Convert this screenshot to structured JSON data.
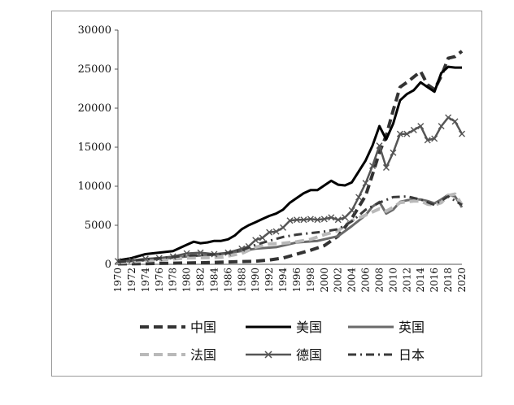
{
  "chart_data": {
    "type": "line",
    "title": "",
    "xlabel": "",
    "ylabel": "",
    "ylim": [
      0,
      30000
    ],
    "yticks": [
      0,
      5000,
      10000,
      15000,
      20000,
      25000,
      30000
    ],
    "xlim": [
      1970,
      2020
    ],
    "xticks": [
      1970,
      1972,
      1974,
      1976,
      1978,
      1980,
      1982,
      1984,
      1986,
      1988,
      1990,
      1992,
      1994,
      1996,
      1998,
      2000,
      2002,
      2004,
      2006,
      2008,
      2010,
      2012,
      2014,
      2016,
      2018,
      2020
    ],
    "legend_position": "bottom",
    "grid": false,
    "series": [
      {
        "name": "中国",
        "color": "#333333",
        "style": "dash",
        "x": [
          1970,
          1974,
          1978,
          1982,
          1986,
          1990,
          1992,
          1994,
          1996,
          1998,
          2000,
          2002,
          2004,
          2006,
          2007,
          2008,
          2009,
          2010,
          2011,
          2012,
          2013,
          2014,
          2015,
          2016,
          2017,
          2018,
          2019,
          2020
        ],
        "y": [
          50,
          80,
          150,
          200,
          300,
          400,
          550,
          800,
          1300,
          1800,
          2400,
          3600,
          5900,
          8800,
          11500,
          14300,
          16500,
          19700,
          22700,
          23300,
          24000,
          24700,
          23000,
          22400,
          24100,
          26400,
          26600,
          27300
        ]
      },
      {
        "name": "美国",
        "color": "#000000",
        "style": "solid",
        "x": [
          1970,
          1972,
          1974,
          1976,
          1978,
          1980,
          1981,
          1982,
          1983,
          1984,
          1985,
          1986,
          1987,
          1988,
          1989,
          1990,
          1991,
          1992,
          1993,
          1994,
          1995,
          1996,
          1997,
          1998,
          1999,
          2000,
          2001,
          2002,
          2003,
          2004,
          2005,
          2006,
          2007,
          2008,
          2009,
          2010,
          2011,
          2012,
          2013,
          2014,
          2015,
          2016,
          2017,
          2018,
          2019,
          2020
        ],
        "y": [
          500,
          800,
          1300,
          1500,
          1700,
          2500,
          2900,
          2700,
          2800,
          3000,
          3000,
          3200,
          3700,
          4500,
          5000,
          5400,
          5800,
          6200,
          6500,
          7000,
          7900,
          8500,
          9100,
          9500,
          9500,
          10100,
          10700,
          10200,
          10100,
          10500,
          11900,
          13300,
          15200,
          17700,
          16000,
          18000,
          21000,
          21800,
          22300,
          23300,
          22700,
          22100,
          24500,
          25300,
          25200,
          25200
        ]
      },
      {
        "name": "英国",
        "color": "#6a6a6a",
        "style": "solid",
        "x": [
          1970,
          1975,
          1980,
          1985,
          1988,
          1990,
          1993,
          1996,
          1999,
          2002,
          2004,
          2006,
          2007,
          2008,
          2009,
          2010,
          2011,
          2012,
          2013,
          2014,
          2015,
          2016,
          2017,
          2018,
          2019,
          2020
        ],
        "y": [
          300,
          600,
          1000,
          1300,
          1700,
          2000,
          2200,
          2800,
          3000,
          3600,
          4900,
          6300,
          7400,
          8000,
          6500,
          7000,
          8000,
          8200,
          8300,
          8300,
          8100,
          7800,
          8300,
          8900,
          8700,
          7300
        ]
      },
      {
        "name": "法国",
        "color": "#b9b9b9",
        "style": "dash",
        "x": [
          1970,
          1975,
          1980,
          1985,
          1988,
          1990,
          1992,
          1994,
          1996,
          1998,
          2000,
          2002,
          2004,
          2006,
          2008,
          2009,
          2010,
          2011,
          2012,
          2013,
          2014,
          2015,
          2016,
          2017,
          2018,
          2019,
          2020
        ],
        "y": [
          200,
          500,
          800,
          900,
          1400,
          2200,
          2600,
          2700,
          2900,
          3200,
          3800,
          4300,
          5600,
          6300,
          7100,
          6800,
          7300,
          7900,
          8000,
          8100,
          8100,
          7700,
          7600,
          7900,
          8800,
          9000,
          7600
        ]
      },
      {
        "name": "德国",
        "color": "#555555",
        "style": "cross",
        "x": [
          1970,
          1972,
          1974,
          1976,
          1978,
          1980,
          1982,
          1984,
          1986,
          1988,
          1989,
          1990,
          1991,
          1992,
          1993,
          1994,
          1995,
          1996,
          1997,
          1998,
          1999,
          2000,
          2001,
          2002,
          2003,
          2004,
          2005,
          2006,
          2007,
          2008,
          2009,
          2010,
          2011,
          2012,
          2013,
          2014,
          2015,
          2016,
          2017,
          2018,
          2019,
          2020
        ],
        "y": [
          400,
          500,
          700,
          800,
          1000,
          1400,
          1500,
          1300,
          1500,
          2000,
          2300,
          3100,
          3400,
          4100,
          4200,
          4700,
          5600,
          5700,
          5700,
          5800,
          5700,
          5800,
          6000,
          5700,
          6000,
          6900,
          8600,
          10400,
          12600,
          15200,
          12400,
          14300,
          16700,
          16700,
          17200,
          17700,
          15900,
          16100,
          17700,
          18800,
          18300,
          16700
        ]
      },
      {
        "name": "日本",
        "color": "#3a3a3a",
        "style": "dashdot",
        "x": [
          1970,
          1975,
          1980,
          1985,
          1988,
          1990,
          1992,
          1994,
          1996,
          1998,
          2000,
          2002,
          2004,
          2006,
          2008,
          2010,
          2012,
          2014,
          2016,
          2018,
          2020
        ],
        "y": [
          300,
          700,
          1100,
          1300,
          1800,
          2500,
          3000,
          3500,
          3800,
          4000,
          4200,
          4500,
          5500,
          7000,
          7900,
          8600,
          8700,
          8300,
          7600,
          8700,
          7600
        ]
      }
    ]
  }
}
